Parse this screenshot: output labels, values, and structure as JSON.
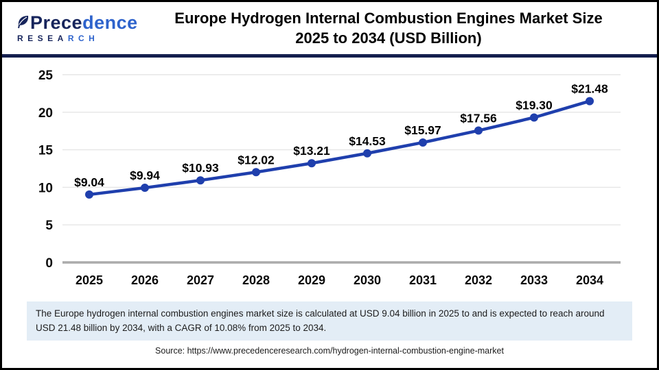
{
  "brand": {
    "name_part1": "Prece",
    "name_part2": "dence",
    "sub_part1": "RESEA",
    "sub_part2": "RCH"
  },
  "header": {
    "title_line1": "Europe Hydrogen Internal Combustion Engines Market Size",
    "title_line2": "2025 to 2034 (USD Billion)"
  },
  "chart_data": {
    "type": "line",
    "title": "Europe Hydrogen Internal Combustion Engines Market Size 2025 to 2034 (USD Billion)",
    "categories": [
      "2025",
      "2026",
      "2027",
      "2028",
      "2029",
      "2030",
      "2031",
      "2032",
      "2033",
      "2034"
    ],
    "values": [
      9.04,
      9.94,
      10.93,
      12.02,
      13.21,
      14.53,
      15.97,
      17.56,
      19.3,
      21.48
    ],
    "point_labels": [
      "$9.04",
      "$9.94",
      "$10.93",
      "$12.02",
      "$13.21",
      "$14.53",
      "$15.97",
      "$17.56",
      "$19.30",
      "$21.48"
    ],
    "unit": "USD Billion",
    "ylim": [
      0,
      25
    ],
    "yticks": [
      0,
      5,
      10,
      15,
      20,
      25
    ],
    "grid": true,
    "legend": "none",
    "line_color": "#1F3FAD",
    "marker_color": "#1F3FAD",
    "grid_color": "#E6E6E6",
    "axis_color": "#ABABAB",
    "tick_label_color": "#0a0a0a",
    "data_label_color": "#000000"
  },
  "footer": {
    "note": "The Europe hydrogen internal combustion engines market  size is calculated at USD 9.04 billion in 2025 to and is expected to reach around USD 21.48 billion by 2034, with a CAGR of 10.08% from 2025 to 2034.",
    "source": "Source: https://www.precedenceresearch.com/hydrogen-internal-combustion-engine-market"
  },
  "colors": {
    "accent_navy": "#141E4D",
    "note_background": "#E3EDF6",
    "frame_border": "#000000"
  }
}
